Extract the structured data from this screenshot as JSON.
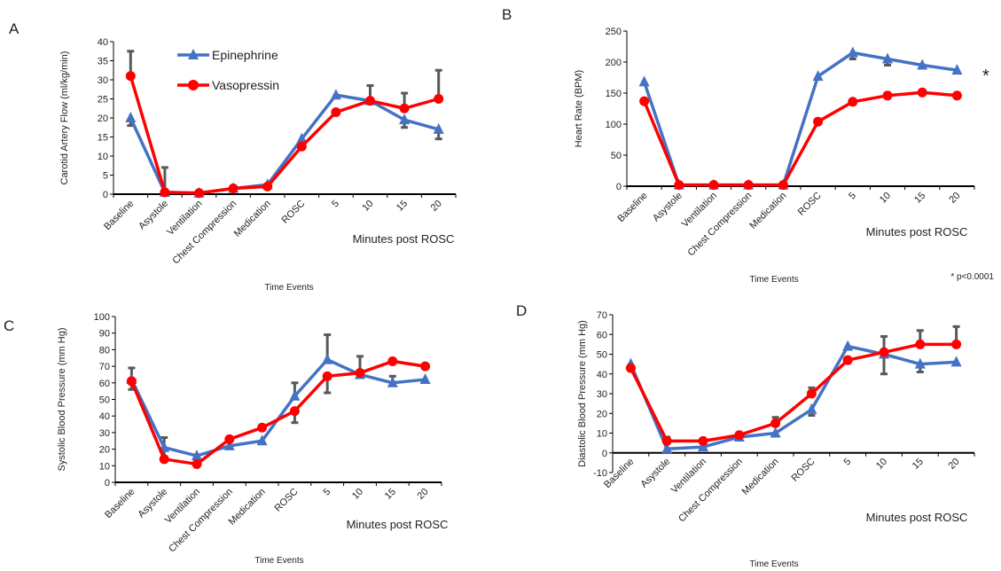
{
  "colors": {
    "epinephrine": "#4472C4",
    "vasopressin": "#FF0000",
    "error_bar": "#595959",
    "axis": "#000000"
  },
  "legend": {
    "epinephrine": "Epinephrine",
    "vasopressin": "Vasopressin"
  },
  "significance": {
    "marker": "*",
    "note": "* p<0.0001"
  },
  "chart_data": [
    {
      "panel": "A",
      "type": "line",
      "ylabel": "Carotid Artery Flow (ml/kg/min)",
      "xlabel": "Time Events",
      "xsublabel": "Minutes post ROSC",
      "categories": [
        "Baseline",
        "Asystole",
        "Ventilation",
        "Chest Compression",
        "Medication",
        "ROSC",
        "5",
        "10",
        "15",
        "20"
      ],
      "ylim": [
        0,
        40
      ],
      "yticks": [
        0,
        5,
        10,
        15,
        20,
        25,
        30,
        35,
        40
      ],
      "series": [
        {
          "name": "Epinephrine",
          "marker": "triangle",
          "values": [
            20,
            0.5,
            0.3,
            1.5,
            2.5,
            14.5,
            26,
            24.5,
            19.5,
            17
          ],
          "error": [
            2,
            0,
            0,
            0,
            0,
            0,
            0,
            0,
            2,
            2.5
          ],
          "error_dir": [
            -1,
            0,
            0,
            0,
            0,
            0,
            0,
            0,
            -1,
            -1
          ]
        },
        {
          "name": "Vasopressin",
          "marker": "circle",
          "values": [
            31,
            0.5,
            0.3,
            1.5,
            2,
            12.5,
            21.5,
            24.5,
            22.5,
            25
          ],
          "error": [
            6.5,
            6.5,
            0,
            0,
            0,
            0,
            0,
            4,
            4,
            7.5
          ],
          "error_dir": [
            1,
            1,
            0,
            0,
            0,
            0,
            0,
            1,
            1,
            1
          ]
        }
      ]
    },
    {
      "panel": "B",
      "type": "line",
      "ylabel": "Heart Rate (BPM)",
      "xlabel": "Time Events",
      "xsublabel": "Minutes post ROSC",
      "categories": [
        "Baseline",
        "Asystole",
        "Ventilation",
        "Chest Compression",
        "Medication",
        "ROSC",
        "5",
        "10",
        "15",
        "20"
      ],
      "ylim": [
        0,
        250
      ],
      "yticks": [
        0,
        50,
        100,
        150,
        200,
        250
      ],
      "series": [
        {
          "name": "Epinephrine",
          "marker": "triangle",
          "values": [
            168,
            2,
            2,
            2,
            2,
            177,
            215,
            205,
            195,
            187
          ],
          "error": [
            0,
            0,
            0,
            0,
            0,
            0,
            10,
            10,
            0,
            0
          ],
          "error_dir": [
            0,
            0,
            0,
            0,
            0,
            0,
            -1,
            -1,
            0,
            0
          ]
        },
        {
          "name": "Vasopressin",
          "marker": "circle",
          "values": [
            137,
            2,
            2,
            2,
            2,
            104,
            136,
            146,
            151,
            146
          ],
          "error": [
            0,
            0,
            0,
            0,
            0,
            0,
            0,
            0,
            0,
            0
          ],
          "error_dir": [
            0,
            0,
            0,
            0,
            0,
            0,
            0,
            0,
            0,
            0
          ]
        }
      ]
    },
    {
      "panel": "C",
      "type": "line",
      "ylabel": "Systolic Blood Pressure (mm Hg)",
      "xlabel": "Time Events",
      "xsublabel": "Minutes post ROSC",
      "categories": [
        "Baseline",
        "Asystole",
        "Ventilation",
        "Chest Compression",
        "Medication",
        "ROSC",
        "5",
        "10",
        "15",
        "20"
      ],
      "ylim": [
        0,
        100
      ],
      "yticks": [
        0,
        10,
        20,
        30,
        40,
        50,
        60,
        70,
        80,
        90,
        100
      ],
      "series": [
        {
          "name": "Epinephrine",
          "marker": "triangle",
          "values": [
            62,
            21,
            16,
            22,
            25,
            52,
            74,
            65,
            60,
            62
          ],
          "error": [
            6,
            0,
            0,
            0,
            0,
            8,
            15,
            0,
            4,
            0
          ],
          "error_dir": [
            -1,
            0,
            0,
            0,
            0,
            1,
            1,
            0,
            1,
            0
          ]
        },
        {
          "name": "Vasopressin",
          "marker": "circle",
          "values": [
            61,
            14,
            11,
            26,
            33,
            43,
            64,
            66,
            73,
            70
          ],
          "error": [
            8,
            13,
            0,
            0,
            0,
            7,
            10,
            10,
            0,
            0
          ],
          "error_dir": [
            1,
            1,
            0,
            0,
            0,
            -1,
            -1,
            1,
            0,
            0
          ]
        }
      ]
    },
    {
      "panel": "D",
      "type": "line",
      "ylabel": "Diastolic Blood Pressure (mm Hg)",
      "xlabel": "Time Events",
      "xsublabel": "Minutes post ROSC",
      "categories": [
        "Baseline",
        "Asystole",
        "Ventilation",
        "Chest Compression",
        "Medication",
        "ROSC",
        "5",
        "10",
        "15",
        "20"
      ],
      "ylim": [
        -10,
        70
      ],
      "yticks": [
        -10,
        0,
        10,
        20,
        30,
        40,
        50,
        60,
        70
      ],
      "series": [
        {
          "name": "Epinephrine",
          "marker": "triangle",
          "values": [
            45,
            2,
            3,
            8,
            10,
            22,
            54,
            50,
            45,
            46
          ],
          "error": [
            0,
            0,
            0,
            0,
            0,
            3,
            0,
            10,
            4,
            0
          ],
          "error_dir": [
            0,
            0,
            0,
            0,
            0,
            -1,
            0,
            -1,
            -1,
            0
          ]
        },
        {
          "name": "Vasopressin",
          "marker": "circle",
          "values": [
            43,
            6,
            6,
            9,
            15,
            30,
            47,
            51,
            55,
            55
          ],
          "error": [
            0,
            2,
            0,
            0,
            3,
            3,
            0,
            8,
            7,
            9
          ],
          "error_dir": [
            0,
            1,
            0,
            0,
            1,
            1,
            0,
            1,
            1,
            1
          ]
        }
      ]
    }
  ]
}
